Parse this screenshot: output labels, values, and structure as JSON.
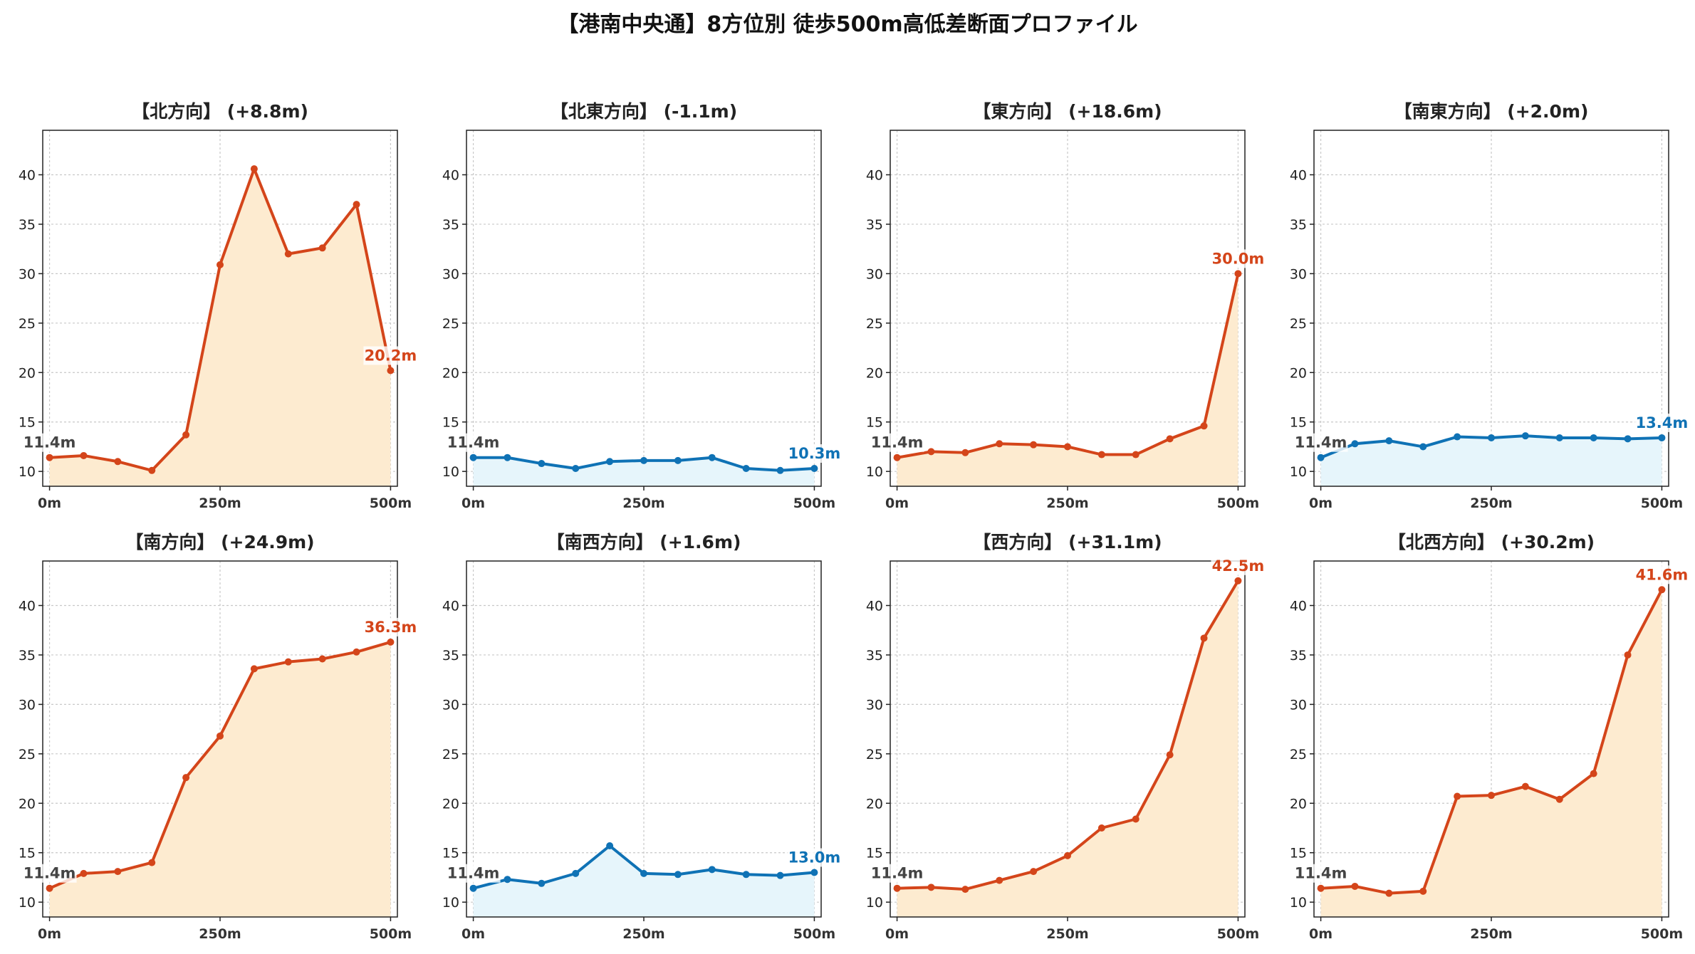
{
  "title": "【港南中央通】8方位別 徒歩500m高低差断面プロファイル",
  "colors": {
    "up_line": "#d4451a",
    "up_fill": "#fdebd0",
    "down_line": "#0f72b5",
    "down_fill": "#e6f5fb",
    "start_label": "#444444"
  },
  "chart_data": [
    {
      "type": "area",
      "title": "【北方向】 (+8.8m)",
      "trend": "up",
      "x": [
        0,
        50,
        100,
        150,
        200,
        250,
        300,
        350,
        400,
        450,
        500
      ],
      "y": [
        11.4,
        11.6,
        11.0,
        10.1,
        13.7,
        30.9,
        40.6,
        32.0,
        32.6,
        37.0,
        20.2
      ],
      "start_label": "11.4m",
      "end_label": "20.2m",
      "xticks": [
        "0m",
        "250m",
        "500m"
      ],
      "yticks": [
        10,
        15,
        20,
        25,
        30,
        35,
        40
      ],
      "ylim": [
        8.5,
        44.5
      ],
      "xlim": [
        -10,
        510
      ],
      "grid": true
    },
    {
      "type": "area",
      "title": "【北東方向】 (-1.1m)",
      "trend": "down",
      "x": [
        0,
        50,
        100,
        150,
        200,
        250,
        300,
        350,
        400,
        450,
        500
      ],
      "y": [
        11.4,
        11.4,
        10.8,
        10.3,
        11.0,
        11.1,
        11.1,
        11.4,
        10.3,
        10.1,
        10.3
      ],
      "start_label": "11.4m",
      "end_label": "10.3m",
      "xticks": [
        "0m",
        "250m",
        "500m"
      ],
      "yticks": [
        10,
        15,
        20,
        25,
        30,
        35,
        40
      ],
      "ylim": [
        8.5,
        44.5
      ],
      "xlim": [
        -10,
        510
      ],
      "grid": true
    },
    {
      "type": "area",
      "title": "【東方向】 (+18.6m)",
      "trend": "up",
      "x": [
        0,
        50,
        100,
        150,
        200,
        250,
        300,
        350,
        400,
        450,
        500
      ],
      "y": [
        11.4,
        12.0,
        11.9,
        12.8,
        12.7,
        12.5,
        11.7,
        11.7,
        13.3,
        14.6,
        30.0
      ],
      "start_label": "11.4m",
      "end_label": "30.0m",
      "xticks": [
        "0m",
        "250m",
        "500m"
      ],
      "yticks": [
        10,
        15,
        20,
        25,
        30,
        35,
        40
      ],
      "ylim": [
        8.5,
        44.5
      ],
      "xlim": [
        -10,
        510
      ],
      "grid": true
    },
    {
      "type": "area",
      "title": "【南東方向】 (+2.0m)",
      "trend": "down",
      "x": [
        0,
        50,
        100,
        150,
        200,
        250,
        300,
        350,
        400,
        450,
        500
      ],
      "y": [
        11.4,
        12.8,
        13.1,
        12.5,
        13.5,
        13.4,
        13.6,
        13.4,
        13.4,
        13.3,
        13.4
      ],
      "start_label": "11.4m",
      "end_label": "13.4m",
      "xticks": [
        "0m",
        "250m",
        "500m"
      ],
      "yticks": [
        10,
        15,
        20,
        25,
        30,
        35,
        40
      ],
      "ylim": [
        8.5,
        44.5
      ],
      "xlim": [
        -10,
        510
      ],
      "grid": true
    },
    {
      "type": "area",
      "title": "【南方向】 (+24.9m)",
      "trend": "up",
      "x": [
        0,
        50,
        100,
        150,
        200,
        250,
        300,
        350,
        400,
        450,
        500
      ],
      "y": [
        11.4,
        12.9,
        13.1,
        14.0,
        22.6,
        26.8,
        33.6,
        34.3,
        34.6,
        35.3,
        36.3
      ],
      "start_label": "11.4m",
      "end_label": "36.3m",
      "xticks": [
        "0m",
        "250m",
        "500m"
      ],
      "yticks": [
        10,
        15,
        20,
        25,
        30,
        35,
        40
      ],
      "ylim": [
        8.5,
        44.5
      ],
      "xlim": [
        -10,
        510
      ],
      "grid": true
    },
    {
      "type": "area",
      "title": "【南西方向】 (+1.6m)",
      "trend": "down",
      "x": [
        0,
        50,
        100,
        150,
        200,
        250,
        300,
        350,
        400,
        450,
        500
      ],
      "y": [
        11.4,
        12.3,
        11.9,
        12.9,
        15.7,
        12.9,
        12.8,
        13.3,
        12.8,
        12.7,
        13.0
      ],
      "start_label": "11.4m",
      "end_label": "13.0m",
      "xticks": [
        "0m",
        "250m",
        "500m"
      ],
      "yticks": [
        10,
        15,
        20,
        25,
        30,
        35,
        40
      ],
      "ylim": [
        8.5,
        44.5
      ],
      "xlim": [
        -10,
        510
      ],
      "grid": true
    },
    {
      "type": "area",
      "title": "【西方向】 (+31.1m)",
      "trend": "up",
      "x": [
        0,
        50,
        100,
        150,
        200,
        250,
        300,
        350,
        400,
        450,
        500
      ],
      "y": [
        11.4,
        11.5,
        11.3,
        12.2,
        13.1,
        14.7,
        17.5,
        18.4,
        24.9,
        36.7,
        42.5
      ],
      "start_label": "11.4m",
      "end_label": "42.5m",
      "xticks": [
        "0m",
        "250m",
        "500m"
      ],
      "yticks": [
        10,
        15,
        20,
        25,
        30,
        35,
        40
      ],
      "ylim": [
        8.5,
        44.5
      ],
      "xlim": [
        -10,
        510
      ],
      "grid": true
    },
    {
      "type": "area",
      "title": "【北西方向】 (+30.2m)",
      "trend": "up",
      "x": [
        0,
        50,
        100,
        150,
        200,
        250,
        300,
        350,
        400,
        450,
        500
      ],
      "y": [
        11.4,
        11.6,
        10.9,
        11.1,
        20.7,
        20.8,
        21.7,
        20.4,
        23.0,
        35.0,
        41.6
      ],
      "start_label": "11.4m",
      "end_label": "41.6m",
      "xticks": [
        "0m",
        "250m",
        "500m"
      ],
      "yticks": [
        10,
        15,
        20,
        25,
        30,
        35,
        40
      ],
      "ylim": [
        8.5,
        44.5
      ],
      "xlim": [
        -10,
        510
      ],
      "grid": true
    }
  ]
}
